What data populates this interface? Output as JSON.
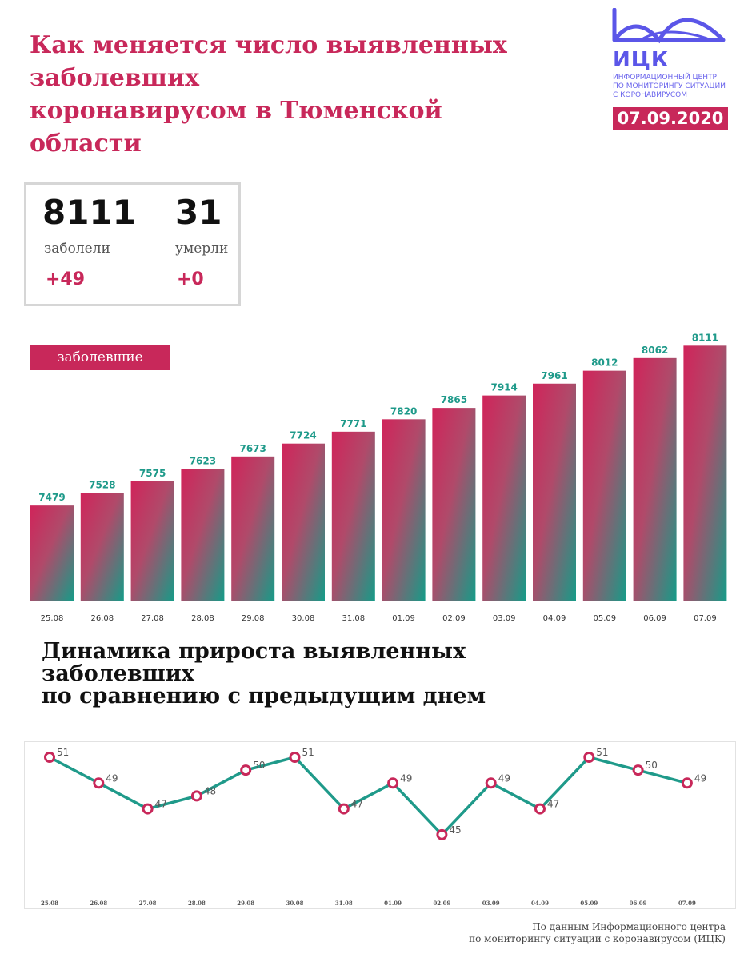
{
  "header": {
    "title_lines": [
      "Как меняется число выявленных",
      "заболевших",
      "коронавирусом в Тюменской",
      "области"
    ]
  },
  "logo": {
    "name": "ИЦК",
    "subtitle_lines": [
      "ИНФОРМАЦИОННЫЙ ЦЕНТР",
      "ПО МОНИТОРИНГУ СИТУАЦИИ",
      "С КОРОНАВИРУСОМ"
    ],
    "color": "#5b56e8"
  },
  "date": "07.09.2020",
  "stats": {
    "cases": {
      "value": "8111",
      "label": "заболели",
      "delta": "+49"
    },
    "deaths": {
      "value": "31",
      "label": "умерли",
      "delta": "+0"
    }
  },
  "colors": {
    "accent": "#c8285a",
    "teal": "#1f9a8a"
  },
  "chart_data": [
    {
      "type": "bar",
      "legend": "заболевшие",
      "categories": [
        "25.08",
        "26.08",
        "27.08",
        "28.08",
        "29.08",
        "30.08",
        "31.08",
        "01.09",
        "02.09",
        "03.09",
        "04.09",
        "05.09",
        "06.09",
        "07.09"
      ],
      "values": [
        7479,
        7528,
        7575,
        7623,
        7673,
        7724,
        7771,
        7820,
        7865,
        7914,
        7961,
        8012,
        8062,
        8111
      ],
      "ylim": [
        7100,
        8150
      ]
    },
    {
      "type": "line",
      "title_lines": [
        "Динамика прироста выявленных",
        "заболевших",
        "по сравнению с предыдущим днем"
      ],
      "categories": [
        "25.08",
        "26.08",
        "27.08",
        "28.08",
        "29.08",
        "30.08",
        "31.08",
        "01.09",
        "02.09",
        "03.09",
        "04.09",
        "05.09",
        "06.09",
        "07.09"
      ],
      "values": [
        51,
        49,
        47,
        48,
        50,
        51,
        47,
        49,
        45,
        49,
        47,
        51,
        50,
        49
      ],
      "ylim": [
        44,
        52
      ]
    }
  ],
  "footer": {
    "source_lines": [
      "По данным Информационного центра",
      "по мониторингу ситуации с коронавирусом (ИЦК)"
    ]
  }
}
